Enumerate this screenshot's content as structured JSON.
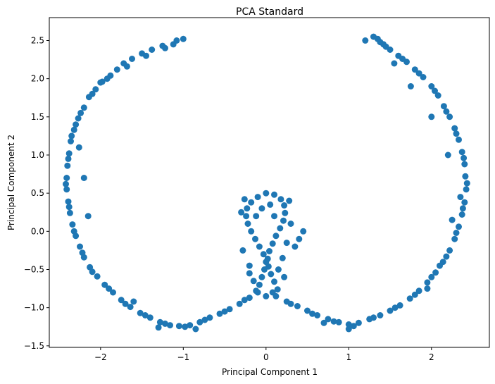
{
  "chart_data": {
    "type": "scatter",
    "title": "PCA Standard",
    "xlabel": "Principal Component 1",
    "ylabel": "Principal Component 2",
    "xlim": [
      -2.62,
      2.7
    ],
    "ylim": [
      -1.52,
      2.8
    ],
    "xticks": [
      -2,
      -1,
      0,
      1,
      2
    ],
    "xtick_labels": [
      "−2",
      "−1",
      "0",
      "1",
      "2"
    ],
    "yticks": [
      -1.5,
      -1.0,
      -0.5,
      0.0,
      0.5,
      1.0,
      1.5,
      2.0,
      2.5
    ],
    "ytick_labels": [
      "−1.5",
      "−1.0",
      "−0.5",
      "0.0",
      "0.5",
      "1.0",
      "1.5",
      "2.0",
      "2.5"
    ],
    "grid": false,
    "marker_color": "#1f77b4",
    "series": [
      {
        "points": [
          [
            -1.0,
            2.52
          ],
          [
            -1.12,
            2.45
          ],
          [
            -1.25,
            2.43
          ],
          [
            -1.38,
            2.38
          ],
          [
            -1.5,
            2.33
          ],
          [
            -1.62,
            2.26
          ],
          [
            -1.72,
            2.2
          ],
          [
            -1.8,
            2.12
          ],
          [
            -1.88,
            2.04
          ],
          [
            -1.98,
            1.96
          ],
          [
            -2.06,
            1.86
          ],
          [
            -2.14,
            1.76
          ],
          [
            -2.2,
            1.62
          ],
          [
            -2.27,
            1.48
          ],
          [
            -2.32,
            1.33
          ],
          [
            -2.36,
            1.18
          ],
          [
            -2.38,
            1.02
          ],
          [
            -2.4,
            0.86
          ],
          [
            -2.41,
            0.7
          ],
          [
            -2.41,
            0.55
          ],
          [
            -2.39,
            0.39
          ],
          [
            -2.37,
            0.24
          ],
          [
            -2.34,
            0.09
          ],
          [
            -2.3,
            -0.06
          ],
          [
            -2.25,
            -0.2
          ],
          [
            -2.2,
            -0.34
          ],
          [
            -2.13,
            -0.47
          ],
          [
            -2.04,
            -0.59
          ],
          [
            -1.95,
            -0.7
          ],
          [
            -1.85,
            -0.8
          ],
          [
            -1.75,
            -0.9
          ],
          [
            -1.64,
            -0.99
          ],
          [
            -1.52,
            -1.07
          ],
          [
            -1.4,
            -1.13
          ],
          [
            -1.28,
            -1.19
          ],
          [
            -1.16,
            -1.23
          ],
          [
            -1.05,
            -1.24
          ],
          [
            -0.92,
            -1.23
          ],
          [
            -0.8,
            -1.19
          ],
          [
            -0.68,
            -1.13
          ],
          [
            -0.56,
            -1.08
          ],
          [
            -0.44,
            -1.02
          ],
          [
            -0.32,
            -0.95
          ],
          [
            -0.2,
            -0.87
          ],
          [
            -0.1,
            -0.8
          ],
          [
            -1.08,
            2.5
          ],
          [
            -1.22,
            2.4
          ],
          [
            -1.45,
            2.3
          ],
          [
            -1.68,
            2.16
          ],
          [
            -1.92,
            2.0
          ],
          [
            -2.1,
            1.8
          ],
          [
            -2.24,
            1.55
          ],
          [
            -2.3,
            1.4
          ],
          [
            -2.35,
            1.25
          ],
          [
            -2.39,
            0.95
          ],
          [
            -2.42,
            0.62
          ],
          [
            -2.38,
            0.32
          ],
          [
            -2.32,
            0.0
          ],
          [
            -2.22,
            -0.28
          ],
          [
            -2.1,
            -0.53
          ],
          [
            -1.9,
            -0.75
          ],
          [
            -1.7,
            -0.95
          ],
          [
            -1.46,
            -1.1
          ],
          [
            -1.22,
            -1.21
          ],
          [
            -0.98,
            -1.25
          ],
          [
            -0.74,
            -1.16
          ],
          [
            -0.5,
            -1.05
          ],
          [
            -0.26,
            -0.9
          ],
          [
            -2.0,
            1.95
          ],
          [
            -2.26,
            1.1
          ],
          [
            -2.2,
            0.7
          ],
          [
            -2.15,
            0.2
          ],
          [
            -1.6,
            -0.92
          ],
          [
            -1.3,
            -1.26
          ],
          [
            -0.85,
            -1.28
          ],
          [
            -0.08,
            -0.7
          ],
          [
            -0.05,
            -0.6
          ],
          [
            -0.02,
            -0.5
          ],
          [
            0.0,
            -0.4
          ],
          [
            -0.03,
            -0.3
          ],
          [
            -0.08,
            -0.2
          ],
          [
            -0.13,
            -0.1
          ],
          [
            -0.18,
            0.0
          ],
          [
            -0.22,
            0.1
          ],
          [
            -0.24,
            0.2
          ],
          [
            -0.23,
            0.3
          ],
          [
            -0.18,
            0.38
          ],
          [
            -0.1,
            0.45
          ],
          [
            0.0,
            0.5
          ],
          [
            0.1,
            0.48
          ],
          [
            0.18,
            0.42
          ],
          [
            0.22,
            0.34
          ],
          [
            0.23,
            0.24
          ],
          [
            0.21,
            0.14
          ],
          [
            0.17,
            0.04
          ],
          [
            0.12,
            -0.06
          ],
          [
            0.08,
            -0.16
          ],
          [
            0.04,
            -0.26
          ],
          [
            0.02,
            -0.36
          ],
          [
            0.03,
            -0.46
          ],
          [
            0.06,
            -0.56
          ],
          [
            0.1,
            -0.66
          ],
          [
            0.14,
            -0.76
          ],
          [
            -0.12,
            -0.78
          ],
          [
            0.0,
            -0.85
          ],
          [
            -0.15,
            -0.65
          ],
          [
            -0.2,
            -0.45
          ],
          [
            -0.28,
            -0.25
          ],
          [
            -0.3,
            0.25
          ],
          [
            -0.26,
            0.42
          ],
          [
            0.28,
            0.4
          ],
          [
            0.3,
            0.1
          ],
          [
            0.25,
            -0.15
          ],
          [
            0.2,
            -0.35
          ],
          [
            0.15,
            -0.5
          ],
          [
            0.22,
            -0.6
          ],
          [
            -0.05,
            0.3
          ],
          [
            0.05,
            0.35
          ],
          [
            -0.12,
            0.2
          ],
          [
            0.1,
            0.2
          ],
          [
            -0.2,
            -0.55
          ],
          [
            0.08,
            -0.8
          ],
          [
            0.35,
            -0.2
          ],
          [
            0.4,
            -0.1
          ],
          [
            0.45,
            0.0
          ],
          [
            0.12,
            -0.85
          ],
          [
            0.25,
            -0.92
          ],
          [
            0.38,
            -0.98
          ],
          [
            0.5,
            -1.04
          ],
          [
            0.62,
            -1.1
          ],
          [
            0.75,
            -1.15
          ],
          [
            0.88,
            -1.19
          ],
          [
            1.0,
            -1.22
          ],
          [
            1.12,
            -1.2
          ],
          [
            1.25,
            -1.15
          ],
          [
            1.38,
            -1.1
          ],
          [
            1.5,
            -1.04
          ],
          [
            1.62,
            -0.97
          ],
          [
            1.74,
            -0.88
          ],
          [
            1.85,
            -0.78
          ],
          [
            1.95,
            -0.67
          ],
          [
            2.05,
            -0.54
          ],
          [
            2.14,
            -0.4
          ],
          [
            2.22,
            -0.25
          ],
          [
            2.28,
            -0.1
          ],
          [
            2.33,
            0.06
          ],
          [
            2.37,
            0.22
          ],
          [
            2.4,
            0.38
          ],
          [
            2.42,
            0.55
          ],
          [
            2.41,
            0.72
          ],
          [
            2.4,
            0.88
          ],
          [
            2.37,
            1.04
          ],
          [
            2.33,
            1.2
          ],
          [
            2.28,
            1.35
          ],
          [
            2.22,
            1.5
          ],
          [
            2.15,
            1.64
          ],
          [
            2.08,
            1.78
          ],
          [
            2.0,
            1.9
          ],
          [
            1.9,
            2.02
          ],
          [
            1.8,
            2.12
          ],
          [
            1.7,
            2.22
          ],
          [
            1.6,
            2.3
          ],
          [
            1.5,
            2.38
          ],
          [
            1.42,
            2.45
          ],
          [
            1.35,
            2.52
          ],
          [
            1.3,
            2.55
          ],
          [
            1.2,
            2.5
          ],
          [
            0.3,
            -0.95
          ],
          [
            0.56,
            -1.08
          ],
          [
            0.82,
            -1.18
          ],
          [
            1.06,
            -1.24
          ],
          [
            1.3,
            -1.13
          ],
          [
            1.56,
            -1.0
          ],
          [
            1.8,
            -0.83
          ],
          [
            2.0,
            -0.6
          ],
          [
            2.18,
            -0.33
          ],
          [
            2.3,
            -0.02
          ],
          [
            2.38,
            0.3
          ],
          [
            2.43,
            0.63
          ],
          [
            2.39,
            0.96
          ],
          [
            2.3,
            1.28
          ],
          [
            2.18,
            1.57
          ],
          [
            2.04,
            1.84
          ],
          [
            1.85,
            2.07
          ],
          [
            1.65,
            2.26
          ],
          [
            1.45,
            2.42
          ],
          [
            1.38,
            2.48
          ],
          [
            2.1,
            -0.45
          ],
          [
            2.25,
            0.15
          ],
          [
            2.2,
            1.0
          ],
          [
            2.0,
            1.5
          ],
          [
            1.75,
            1.9
          ],
          [
            1.0,
            -1.28
          ],
          [
            0.7,
            -1.2
          ],
          [
            1.95,
            -0.75
          ],
          [
            2.35,
            0.45
          ],
          [
            1.55,
            2.2
          ]
        ]
      }
    ]
  }
}
